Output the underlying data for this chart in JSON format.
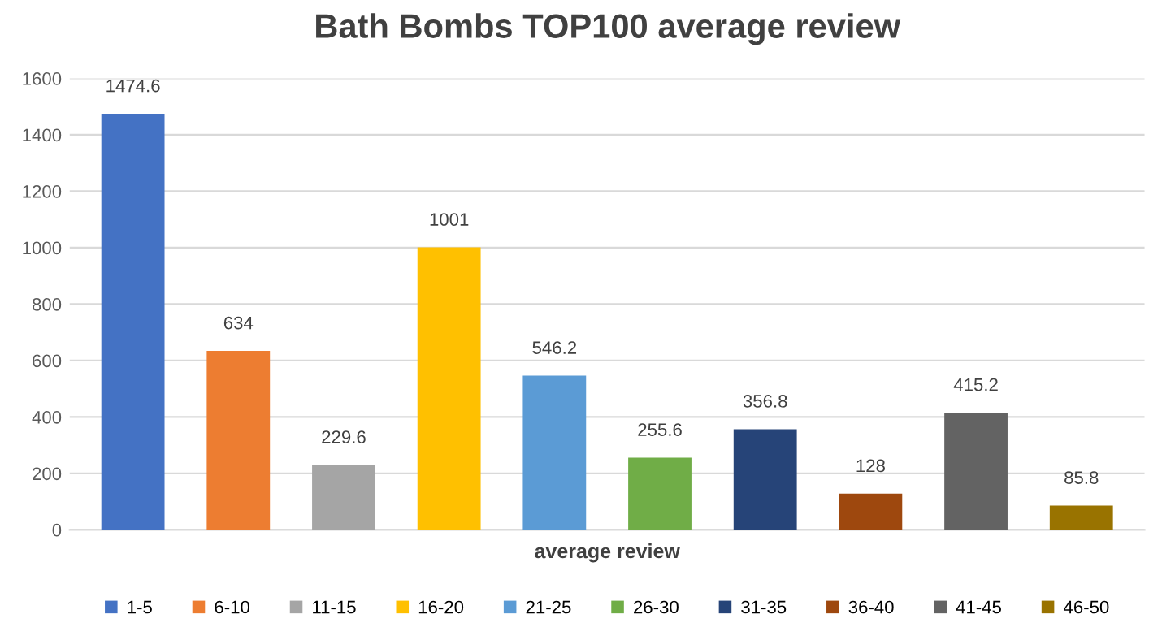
{
  "chart_data": {
    "type": "bar",
    "title": "Bath Bombs TOP100 average review",
    "xlabel": "average review",
    "categories": [
      null,
      null,
      null,
      null,
      null,
      null,
      null,
      null,
      null,
      null
    ],
    "series": [
      {
        "name": "1-5",
        "color": "#4472c4",
        "values": [
          1474.6,
          null,
          null,
          null,
          null,
          null,
          null,
          null,
          null,
          null
        ]
      },
      {
        "name": "6-10",
        "color": "#ed7d31",
        "values": [
          null,
          634,
          null,
          null,
          null,
          null,
          null,
          null,
          null,
          null
        ]
      },
      {
        "name": "11-15",
        "color": "#a5a5a5",
        "values": [
          null,
          null,
          229.6,
          null,
          null,
          null,
          null,
          null,
          null,
          null
        ]
      },
      {
        "name": "16-20",
        "color": "#ffc000",
        "values": [
          null,
          null,
          null,
          1001,
          null,
          null,
          null,
          null,
          null,
          null
        ]
      },
      {
        "name": "21-25",
        "color": "#5b9bd5",
        "values": [
          null,
          null,
          null,
          null,
          546.2,
          null,
          null,
          null,
          null,
          null
        ]
      },
      {
        "name": "26-30",
        "color": "#70ad47",
        "values": [
          null,
          null,
          null,
          null,
          null,
          255.6,
          null,
          null,
          null,
          null
        ]
      },
      {
        "name": "31-35",
        "color": "#264478",
        "values": [
          null,
          null,
          null,
          null,
          null,
          null,
          356.8,
          null,
          null,
          null
        ]
      },
      {
        "name": "36-40",
        "color": "#9e480e",
        "values": [
          null,
          null,
          null,
          null,
          null,
          null,
          null,
          128,
          null,
          null
        ]
      },
      {
        "name": "41-45",
        "color": "#636363",
        "values": [
          null,
          null,
          null,
          null,
          null,
          null,
          null,
          null,
          415.2,
          null
        ]
      },
      {
        "name": "46-50",
        "color": "#997300",
        "values": [
          null,
          null,
          null,
          null,
          null,
          null,
          null,
          null,
          null,
          85.8
        ]
      }
    ],
    "ylim": [
      0,
      1600
    ],
    "yticks": [
      0,
      200,
      400,
      600,
      800,
      1000,
      1200,
      1400,
      1600
    ],
    "grid": "y",
    "legend": "bottom",
    "tick_labels": "y",
    "data_labels": true
  }
}
